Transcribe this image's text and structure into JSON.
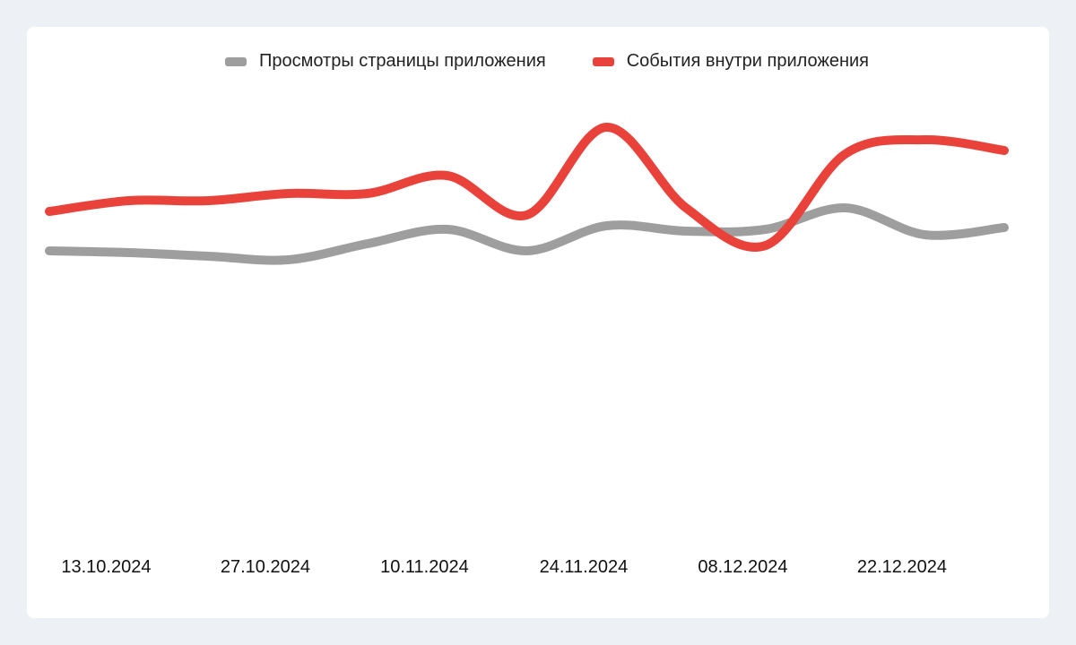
{
  "colors": {
    "background": "#edf0f4",
    "card": "#ffffff",
    "series_gray": "#9e9e9e",
    "series_red": "#e8423b"
  },
  "chart_data": {
    "type": "line",
    "title": "",
    "xlabel": "",
    "ylabel": "",
    "ylim": [
      0,
      100
    ],
    "grid": false,
    "legend_position": "top-center",
    "x_ticks": [
      "13.10.2024",
      "27.10.2024",
      "10.11.2024",
      "24.11.2024",
      "08.12.2024",
      "22.12.2024"
    ],
    "x": [
      "08.10.2024",
      "15.10.2024",
      "22.10.2024",
      "29.10.2024",
      "05.11.2024",
      "12.11.2024",
      "19.11.2024",
      "26.11.2024",
      "03.12.2024",
      "10.12.2024",
      "17.12.2024",
      "24.12.2024",
      "31.12.2024"
    ],
    "series": [
      {
        "name": "Просмотры страницы приложения",
        "color": "#9e9e9e",
        "values": [
          50,
          49.5,
          48.5,
          47.5,
          52,
          56,
          50,
          57,
          55.5,
          56,
          62,
          54.5,
          56.5
        ]
      },
      {
        "name": "События внутри приложения",
        "color": "#e8423b",
        "values": [
          61,
          64,
          64,
          66,
          66,
          71,
          60,
          84.5,
          62,
          51.5,
          77,
          81,
          78
        ]
      }
    ]
  }
}
